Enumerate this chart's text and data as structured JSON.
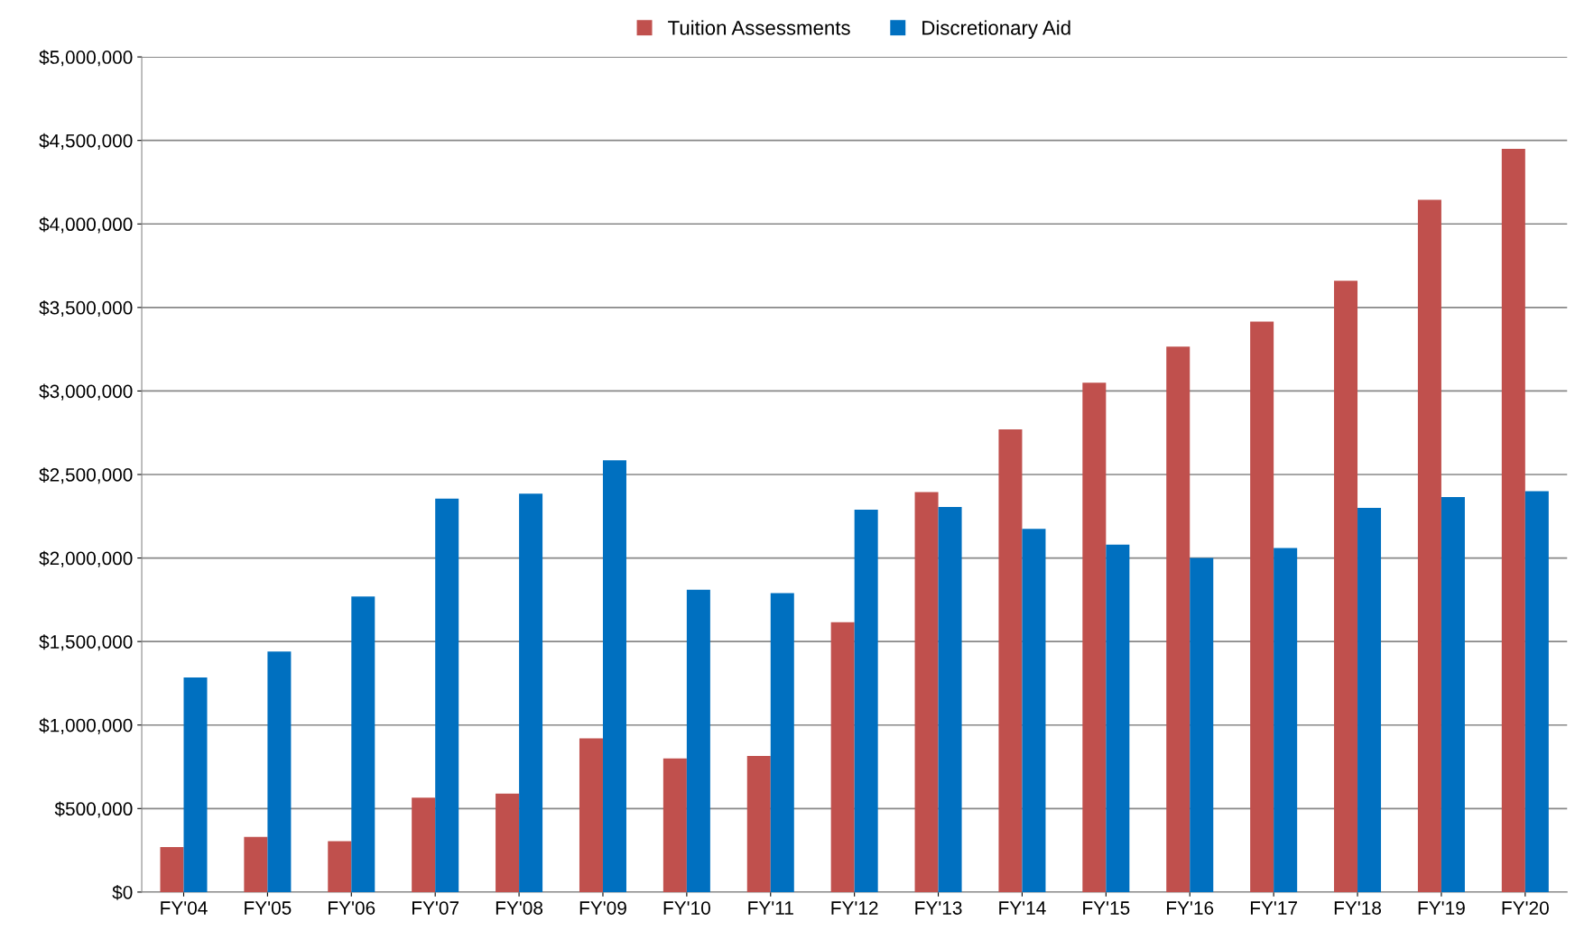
{
  "chart_data": {
    "type": "bar",
    "categories": [
      "FY'04",
      "FY'05",
      "FY'06",
      "FY'07",
      "FY'08",
      "FY'09",
      "FY'10",
      "FY'11",
      "FY'12",
      "FY'13",
      "FY'14",
      "FY'15",
      "FY'16",
      "FY'17",
      "FY'18",
      "FY'19",
      "FY'20"
    ],
    "series": [
      {
        "name": "Tuition Assessments",
        "color": "#c0504d",
        "values": [
          270000,
          330000,
          305000,
          565000,
          590000,
          920000,
          800000,
          815000,
          1615000,
          2395000,
          2770000,
          3050000,
          3265000,
          3415000,
          3660000,
          4145000,
          4450000
        ]
      },
      {
        "name": "Discretionary Aid",
        "color": "#0070c0",
        "values": [
          1285000,
          1440000,
          1770000,
          2355000,
          2385000,
          2585000,
          1810000,
          1790000,
          2290000,
          2305000,
          2175000,
          2080000,
          2000000,
          2060000,
          2300000,
          2365000,
          2400000
        ]
      }
    ],
    "ylim": [
      0,
      5000000
    ],
    "yticks": [
      {
        "value": 0,
        "label": "$0"
      },
      {
        "value": 500000,
        "label": "$500,000"
      },
      {
        "value": 1000000,
        "label": "$1,000,000"
      },
      {
        "value": 1500000,
        "label": "$1,500,000"
      },
      {
        "value": 2000000,
        "label": "$2,000,000"
      },
      {
        "value": 2500000,
        "label": "$2,500,000"
      },
      {
        "value": 3000000,
        "label": "$3,000,000"
      },
      {
        "value": 3500000,
        "label": "$3,500,000"
      },
      {
        "value": 4000000,
        "label": "$4,000,000"
      },
      {
        "value": 4500000,
        "label": "$4,500,000"
      },
      {
        "value": 5000000,
        "label": "$5,000,000"
      }
    ],
    "grid": "y",
    "legend": "top"
  }
}
